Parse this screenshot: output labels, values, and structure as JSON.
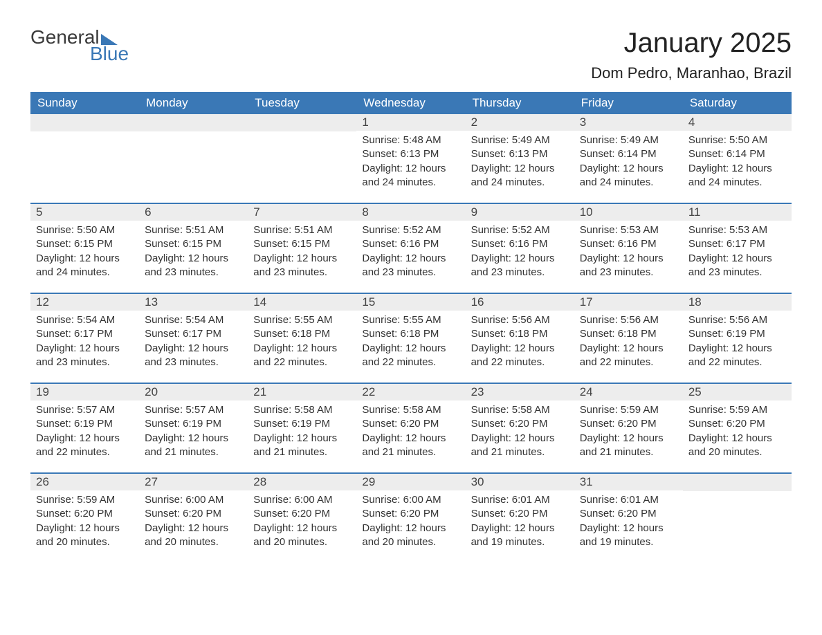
{
  "logo": {
    "word1": "General",
    "word2": "Blue"
  },
  "title": "January 2025",
  "location": "Dom Pedro, Maranhao, Brazil",
  "colors": {
    "header_bg": "#3a78b6",
    "header_text": "#ffffff",
    "daynum_bg": "#ededed",
    "body_text": "#333333",
    "rule": "#3a78b6"
  },
  "fonts": {
    "title_size_pt": 30,
    "location_size_pt": 17,
    "dow_size_pt": 13,
    "body_size_pt": 11
  },
  "dow": [
    "Sunday",
    "Monday",
    "Tuesday",
    "Wednesday",
    "Thursday",
    "Friday",
    "Saturday"
  ],
  "weeks": [
    [
      {
        "n": "",
        "sr": "",
        "ss": "",
        "dl": ""
      },
      {
        "n": "",
        "sr": "",
        "ss": "",
        "dl": ""
      },
      {
        "n": "",
        "sr": "",
        "ss": "",
        "dl": ""
      },
      {
        "n": "1",
        "sr": "Sunrise: 5:48 AM",
        "ss": "Sunset: 6:13 PM",
        "dl": "Daylight: 12 hours and 24 minutes."
      },
      {
        "n": "2",
        "sr": "Sunrise: 5:49 AM",
        "ss": "Sunset: 6:13 PM",
        "dl": "Daylight: 12 hours and 24 minutes."
      },
      {
        "n": "3",
        "sr": "Sunrise: 5:49 AM",
        "ss": "Sunset: 6:14 PM",
        "dl": "Daylight: 12 hours and 24 minutes."
      },
      {
        "n": "4",
        "sr": "Sunrise: 5:50 AM",
        "ss": "Sunset: 6:14 PM",
        "dl": "Daylight: 12 hours and 24 minutes."
      }
    ],
    [
      {
        "n": "5",
        "sr": "Sunrise: 5:50 AM",
        "ss": "Sunset: 6:15 PM",
        "dl": "Daylight: 12 hours and 24 minutes."
      },
      {
        "n": "6",
        "sr": "Sunrise: 5:51 AM",
        "ss": "Sunset: 6:15 PM",
        "dl": "Daylight: 12 hours and 23 minutes."
      },
      {
        "n": "7",
        "sr": "Sunrise: 5:51 AM",
        "ss": "Sunset: 6:15 PM",
        "dl": "Daylight: 12 hours and 23 minutes."
      },
      {
        "n": "8",
        "sr": "Sunrise: 5:52 AM",
        "ss": "Sunset: 6:16 PM",
        "dl": "Daylight: 12 hours and 23 minutes."
      },
      {
        "n": "9",
        "sr": "Sunrise: 5:52 AM",
        "ss": "Sunset: 6:16 PM",
        "dl": "Daylight: 12 hours and 23 minutes."
      },
      {
        "n": "10",
        "sr": "Sunrise: 5:53 AM",
        "ss": "Sunset: 6:16 PM",
        "dl": "Daylight: 12 hours and 23 minutes."
      },
      {
        "n": "11",
        "sr": "Sunrise: 5:53 AM",
        "ss": "Sunset: 6:17 PM",
        "dl": "Daylight: 12 hours and 23 minutes."
      }
    ],
    [
      {
        "n": "12",
        "sr": "Sunrise: 5:54 AM",
        "ss": "Sunset: 6:17 PM",
        "dl": "Daylight: 12 hours and 23 minutes."
      },
      {
        "n": "13",
        "sr": "Sunrise: 5:54 AM",
        "ss": "Sunset: 6:17 PM",
        "dl": "Daylight: 12 hours and 23 minutes."
      },
      {
        "n": "14",
        "sr": "Sunrise: 5:55 AM",
        "ss": "Sunset: 6:18 PM",
        "dl": "Daylight: 12 hours and 22 minutes."
      },
      {
        "n": "15",
        "sr": "Sunrise: 5:55 AM",
        "ss": "Sunset: 6:18 PM",
        "dl": "Daylight: 12 hours and 22 minutes."
      },
      {
        "n": "16",
        "sr": "Sunrise: 5:56 AM",
        "ss": "Sunset: 6:18 PM",
        "dl": "Daylight: 12 hours and 22 minutes."
      },
      {
        "n": "17",
        "sr": "Sunrise: 5:56 AM",
        "ss": "Sunset: 6:18 PM",
        "dl": "Daylight: 12 hours and 22 minutes."
      },
      {
        "n": "18",
        "sr": "Sunrise: 5:56 AM",
        "ss": "Sunset: 6:19 PM",
        "dl": "Daylight: 12 hours and 22 minutes."
      }
    ],
    [
      {
        "n": "19",
        "sr": "Sunrise: 5:57 AM",
        "ss": "Sunset: 6:19 PM",
        "dl": "Daylight: 12 hours and 22 minutes."
      },
      {
        "n": "20",
        "sr": "Sunrise: 5:57 AM",
        "ss": "Sunset: 6:19 PM",
        "dl": "Daylight: 12 hours and 21 minutes."
      },
      {
        "n": "21",
        "sr": "Sunrise: 5:58 AM",
        "ss": "Sunset: 6:19 PM",
        "dl": "Daylight: 12 hours and 21 minutes."
      },
      {
        "n": "22",
        "sr": "Sunrise: 5:58 AM",
        "ss": "Sunset: 6:20 PM",
        "dl": "Daylight: 12 hours and 21 minutes."
      },
      {
        "n": "23",
        "sr": "Sunrise: 5:58 AM",
        "ss": "Sunset: 6:20 PM",
        "dl": "Daylight: 12 hours and 21 minutes."
      },
      {
        "n": "24",
        "sr": "Sunrise: 5:59 AM",
        "ss": "Sunset: 6:20 PM",
        "dl": "Daylight: 12 hours and 21 minutes."
      },
      {
        "n": "25",
        "sr": "Sunrise: 5:59 AM",
        "ss": "Sunset: 6:20 PM",
        "dl": "Daylight: 12 hours and 20 minutes."
      }
    ],
    [
      {
        "n": "26",
        "sr": "Sunrise: 5:59 AM",
        "ss": "Sunset: 6:20 PM",
        "dl": "Daylight: 12 hours and 20 minutes."
      },
      {
        "n": "27",
        "sr": "Sunrise: 6:00 AM",
        "ss": "Sunset: 6:20 PM",
        "dl": "Daylight: 12 hours and 20 minutes."
      },
      {
        "n": "28",
        "sr": "Sunrise: 6:00 AM",
        "ss": "Sunset: 6:20 PM",
        "dl": "Daylight: 12 hours and 20 minutes."
      },
      {
        "n": "29",
        "sr": "Sunrise: 6:00 AM",
        "ss": "Sunset: 6:20 PM",
        "dl": "Daylight: 12 hours and 20 minutes."
      },
      {
        "n": "30",
        "sr": "Sunrise: 6:01 AM",
        "ss": "Sunset: 6:20 PM",
        "dl": "Daylight: 12 hours and 19 minutes."
      },
      {
        "n": "31",
        "sr": "Sunrise: 6:01 AM",
        "ss": "Sunset: 6:20 PM",
        "dl": "Daylight: 12 hours and 19 minutes."
      },
      {
        "n": "",
        "sr": "",
        "ss": "",
        "dl": ""
      }
    ]
  ]
}
